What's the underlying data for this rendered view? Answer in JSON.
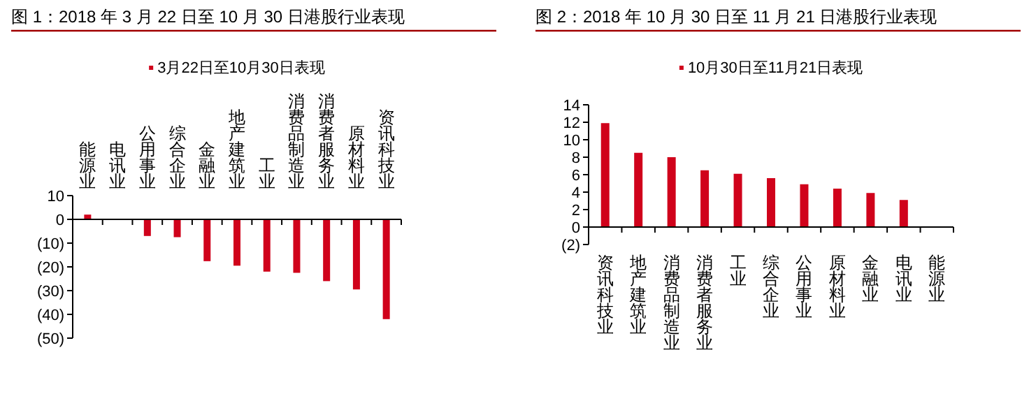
{
  "chart_data": [
    {
      "type": "bar",
      "title": "图 1：2018 年 3 月 22 日至 10 月 30 日港股行业表现",
      "categories": [
        "能源业",
        "电讯业",
        "公用事业",
        "综合企业",
        "金融业",
        "地产建筑业",
        "工业",
        "消费品制造业",
        "消费者服务业",
        "原材料业",
        "资讯科技业"
      ],
      "series": [
        {
          "name": "3月22日至10月30日表现",
          "color": "#d0021b",
          "values": [
            2,
            0,
            -7,
            -7.5,
            -17.6,
            -19.5,
            -22,
            -22.5,
            -26,
            -29.5,
            -42
          ]
        }
      ],
      "ylim": [
        -50,
        10
      ],
      "yticks": [
        10,
        0,
        {
          "value": -10,
          "label": "(10)"
        },
        {
          "value": -20,
          "label": "(20)"
        },
        {
          "value": -30,
          "label": "(30)"
        },
        {
          "value": -40,
          "label": "(40)"
        },
        {
          "value": -50,
          "label": "(50)"
        }
      ],
      "legend": "top",
      "grid": false
    },
    {
      "type": "bar",
      "title": "图 2：2018 年 10 月 30 日至 11 月 21 日港股行业表现",
      "categories": [
        "资讯科技业",
        "地产建筑业",
        "消费品制造业",
        "消费者服务业",
        "工业",
        "综合企业",
        "公用事业",
        "原材料业",
        "金融业",
        "电讯业",
        "能源业"
      ],
      "series": [
        {
          "name": "10月30日至11月21日表现",
          "color": "#d0021b",
          "values": [
            11.9,
            8.5,
            8,
            6.5,
            6.1,
            5.6,
            4.9,
            4.4,
            3.9,
            3.1,
            0
          ]
        }
      ],
      "ylim": [
        -2,
        14
      ],
      "yticks": [
        14,
        12,
        10,
        8,
        6,
        4,
        2,
        0,
        {
          "value": -2,
          "label": "(2)"
        }
      ],
      "legend": "top",
      "grid": false
    }
  ]
}
